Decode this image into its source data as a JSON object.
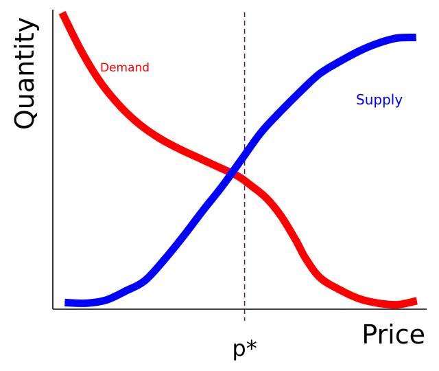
{
  "chart_data": {
    "type": "line",
    "title": "",
    "xlabel": "Price",
    "ylabel": "Quantity",
    "xlim": [
      0,
      100
    ],
    "ylim": [
      0,
      100
    ],
    "grid": false,
    "annotations": [
      {
        "type": "vline",
        "x": 51.3,
        "label": "p*",
        "color": "#5a1a3a"
      }
    ],
    "series": [
      {
        "name": "Demand",
        "color": "#ff0000",
        "x": [
          2.5,
          7.7,
          12.9,
          18.2,
          23.4,
          28.6,
          33.8,
          39.0,
          44.2,
          49.4,
          53.3,
          57.2,
          61.1,
          65.0,
          67.6,
          71.5,
          76.7,
          81.9,
          87.0,
          92.2,
          97.4
        ],
        "values": [
          99.0,
          86.0,
          75.5,
          67.5,
          61.5,
          57.0,
          53.5,
          50.5,
          47.5,
          44.5,
          41.0,
          37.0,
          31.0,
          23.0,
          17.0,
          10.5,
          6.5,
          3.5,
          2.0,
          1.5,
          2.8
        ]
      },
      {
        "name": "Supply",
        "color": "#0000ff",
        "x": [
          3.2,
          9.0,
          14.2,
          19.4,
          24.6,
          29.8,
          35.0,
          40.2,
          45.3,
          50.5,
          55.7,
          60.9,
          66.1,
          71.3,
          76.5,
          81.7,
          86.8,
          92.0,
          97.2
        ],
        "values": [
          2.2,
          2.0,
          3.0,
          6.0,
          9.5,
          16.5,
          24.5,
          33.0,
          41.0,
          50.0,
          59.0,
          66.0,
          72.5,
          78.5,
          82.5,
          86.0,
          88.7,
          90.5,
          90.7
        ]
      }
    ]
  }
}
